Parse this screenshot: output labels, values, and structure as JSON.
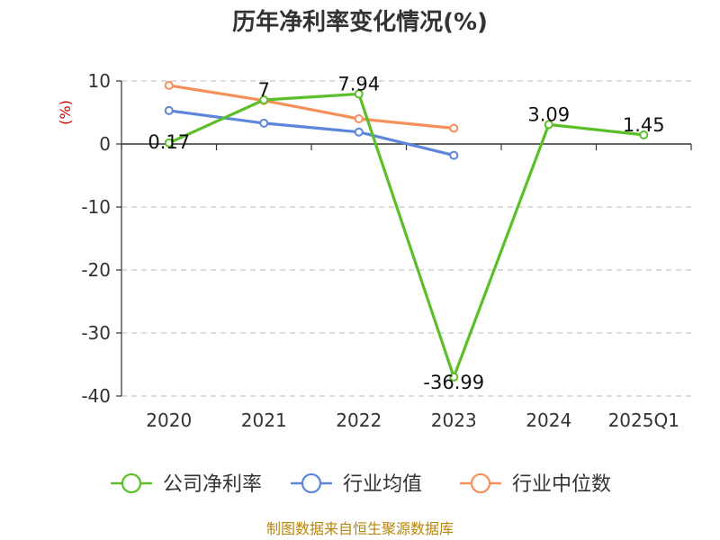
{
  "chart_data": {
    "type": "line",
    "title": "历年净利率变化情况(%)",
    "ylabel": "(%)",
    "categories": [
      "2020",
      "2021",
      "2022",
      "2023",
      "2024",
      "2025Q1"
    ],
    "ylim": [
      -40,
      10
    ],
    "yticks": [
      10,
      0,
      -10,
      -20,
      -30,
      -40
    ],
    "grid": true,
    "legend_position": "bottom",
    "series": [
      {
        "name": "公司净利率",
        "color": "#5cbf2a",
        "values": [
          0.17,
          7,
          7.94,
          -36.99,
          3.09,
          1.45
        ],
        "labels": [
          "0.17",
          "7",
          "7.94",
          "-36.99",
          "3.09",
          "1.45"
        ]
      },
      {
        "name": "行业均值",
        "color": "#5b86d9",
        "values": [
          5.3,
          3.3,
          1.9,
          -1.8,
          null,
          null
        ]
      },
      {
        "name": "行业中位数",
        "color": "#f5905a",
        "values": [
          9.3,
          6.9,
          4.0,
          2.5,
          null,
          null
        ]
      }
    ]
  },
  "source": "制图数据来自恒生聚源数据库"
}
